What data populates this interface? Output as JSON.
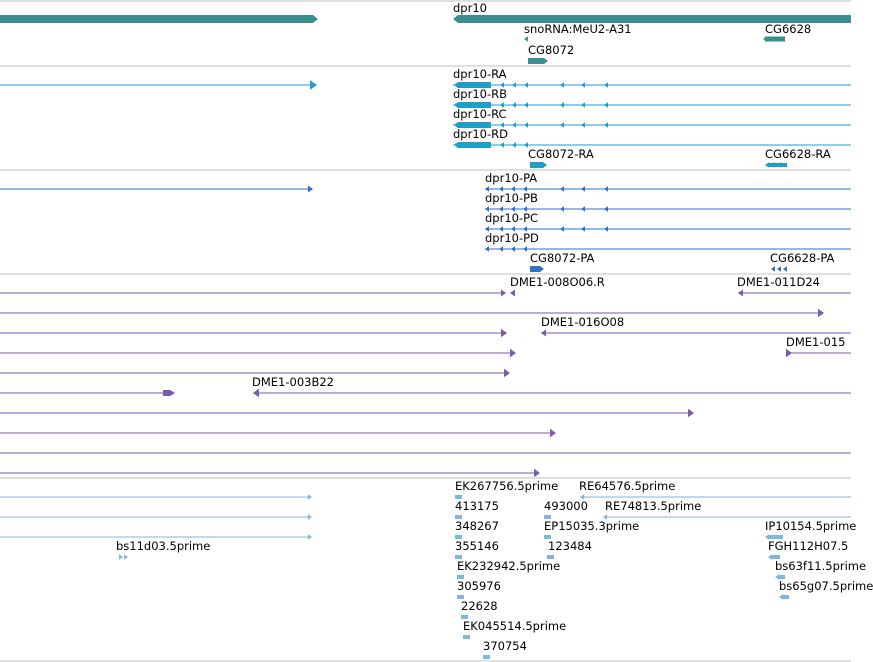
{
  "colors": {
    "gene": "#3a8e8e",
    "transcript": "#1f9ec6",
    "protein": "#2f6fc6",
    "clone": "#7a5bab",
    "est": "#7fb6de",
    "divider": "#c0c0c0"
  },
  "tracks": [
    {
      "name": "genes",
      "labels": [
        {
          "id": "dpr10",
          "text": "dpr10"
        },
        {
          "id": "snoRNA",
          "text": "snoRNA:MeU2-A31"
        },
        {
          "id": "CG6628",
          "text": "CG6628"
        },
        {
          "id": "CG8072",
          "text": "CG8072"
        }
      ]
    },
    {
      "name": "transcripts",
      "labels": [
        {
          "id": "dpr10-RA",
          "text": "dpr10-RA"
        },
        {
          "id": "dpr10-RB",
          "text": "dpr10-RB"
        },
        {
          "id": "dpr10-RC",
          "text": "dpr10-RC"
        },
        {
          "id": "dpr10-RD",
          "text": "dpr10-RD"
        },
        {
          "id": "CG8072-RA",
          "text": "CG8072-RA"
        },
        {
          "id": "CG6628-RA",
          "text": "CG6628-RA"
        }
      ]
    },
    {
      "name": "proteins",
      "labels": [
        {
          "id": "dpr10-PA",
          "text": "dpr10-PA"
        },
        {
          "id": "dpr10-PB",
          "text": "dpr10-PB"
        },
        {
          "id": "dpr10-PC",
          "text": "dpr10-PC"
        },
        {
          "id": "dpr10-PD",
          "text": "dpr10-PD"
        },
        {
          "id": "CG8072-PA",
          "text": "CG8072-PA"
        },
        {
          "id": "CG6628-PA",
          "text": "CG6628-PA"
        }
      ]
    },
    {
      "name": "clones",
      "labels": [
        {
          "id": "DME1-008O06.R",
          "text": "DME1-008O06.R"
        },
        {
          "id": "DME1-011D24",
          "text": "DME1-011D24"
        },
        {
          "id": "DME1-016O08",
          "text": "DME1-016O08"
        },
        {
          "id": "DME1-015",
          "text": "DME1-015"
        },
        {
          "id": "DME1-003B22",
          "text": "DME1-003B22"
        }
      ]
    },
    {
      "name": "ests",
      "labels": [
        {
          "id": "EK267756",
          "text": "EK267756.5prime"
        },
        {
          "id": "RE64576",
          "text": "RE64576.5prime"
        },
        {
          "id": "413175",
          "text": "413175"
        },
        {
          "id": "493000",
          "text": "493000"
        },
        {
          "id": "RE74813",
          "text": "RE74813.5prime"
        },
        {
          "id": "348267",
          "text": "348267"
        },
        {
          "id": "EP15035",
          "text": "EP15035.3prime"
        },
        {
          "id": "IP10154",
          "text": "IP10154.5prime"
        },
        {
          "id": "bs11d03",
          "text": "bs11d03.5prime"
        },
        {
          "id": "355146",
          "text": "355146"
        },
        {
          "id": "123484",
          "text": "123484"
        },
        {
          "id": "FGH112H07",
          "text": "FGH112H07.5"
        },
        {
          "id": "EK232942",
          "text": "EK232942.5prime"
        },
        {
          "id": "bs63f11",
          "text": "bs63f11.5prime"
        },
        {
          "id": "305976",
          "text": "305976"
        },
        {
          "id": "bs65g07",
          "text": "bs65g07.5prime"
        },
        {
          "id": "22628",
          "text": "22628"
        },
        {
          "id": "EK045514",
          "text": "EK045514.5prime"
        },
        {
          "id": "370754",
          "text": "370754"
        }
      ]
    }
  ]
}
